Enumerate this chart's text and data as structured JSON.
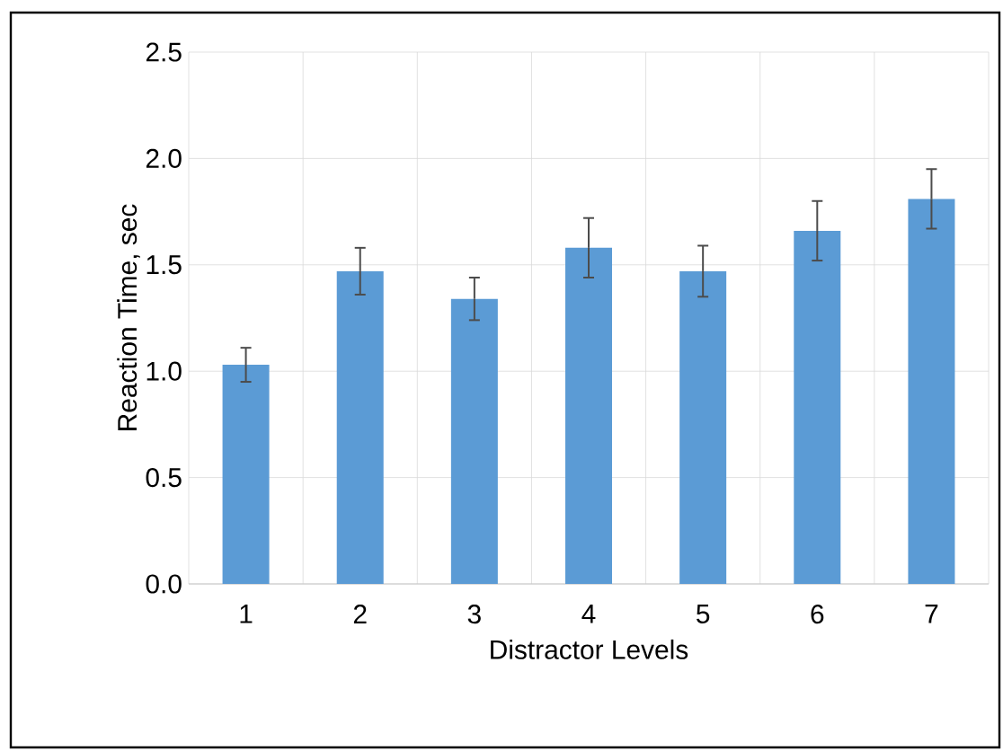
{
  "chart_data": {
    "type": "bar",
    "xlabel": "Distractor Levels",
    "ylabel": "Reaction Time, sec",
    "categories": [
      "1",
      "2",
      "3",
      "4",
      "5",
      "6",
      "7"
    ],
    "values": [
      1.03,
      1.47,
      1.34,
      1.58,
      1.47,
      1.66,
      1.81
    ],
    "errors": [
      0.08,
      0.11,
      0.1,
      0.14,
      0.12,
      0.14,
      0.14
    ],
    "color": "#5b9bd5",
    "ylim": [
      0,
      2.5
    ],
    "yticks": [
      {
        "value": 0,
        "label": "0.0"
      },
      {
        "value": 0.5,
        "label": "0.5"
      },
      {
        "value": 1,
        "label": "1.0"
      },
      {
        "value": 1.5,
        "label": "1.5"
      },
      {
        "value": 2,
        "label": "2.0"
      },
      {
        "value": 2.5,
        "label": "2.5"
      }
    ],
    "grid": true
  }
}
